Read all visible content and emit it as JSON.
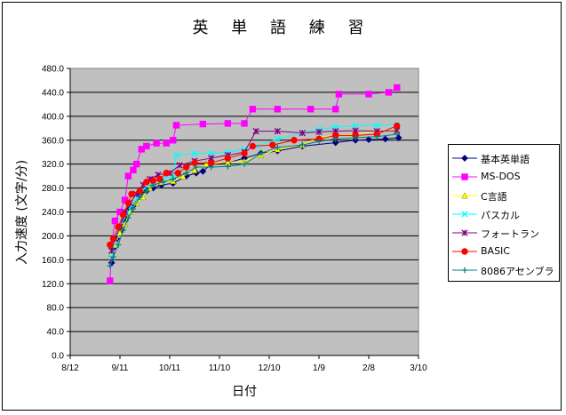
{
  "chart_data": {
    "type": "line",
    "title": "英 単 語 練 習",
    "xlabel": "日付",
    "ylabel": "入力速度 (文字/分)",
    "ylim": [
      0,
      480
    ],
    "yticks": [
      "0.0",
      "40.0",
      "80.0",
      "120.0",
      "160.0",
      "200.0",
      "240.0",
      "280.0",
      "320.0",
      "360.0",
      "400.0",
      "440.0",
      "480.0"
    ],
    "xticks": [
      "8/12",
      "9/11",
      "10/11",
      "11/10",
      "12/10",
      "1/9",
      "2/8",
      "3/10"
    ],
    "xlim_days": [
      0,
      210
    ],
    "grid": "horizontal",
    "plot_background": "#c0c0c0",
    "legend_position": "right",
    "series": [
      {
        "name": "基本英単語",
        "color": "#000080",
        "marker": "diamond",
        "points": [
          [
            25,
            155
          ],
          [
            26,
            180
          ],
          [
            28,
            195
          ],
          [
            31,
            210
          ],
          [
            33,
            225
          ],
          [
            36,
            245
          ],
          [
            38,
            250
          ],
          [
            42,
            270
          ],
          [
            46,
            275
          ],
          [
            50,
            280
          ],
          [
            55,
            285
          ],
          [
            62,
            288
          ],
          [
            70,
            300
          ],
          [
            76,
            305
          ],
          [
            80,
            308
          ],
          [
            85,
            320
          ],
          [
            95,
            322
          ],
          [
            105,
            330
          ],
          [
            115,
            338
          ],
          [
            125,
            342
          ],
          [
            140,
            350
          ],
          [
            160,
            356
          ],
          [
            172,
            360
          ],
          [
            180,
            361
          ],
          [
            190,
            362
          ],
          [
            198,
            364
          ]
        ]
      },
      {
        "name": "MS-DOS",
        "color": "#ff00ff",
        "marker": "square",
        "points": [
          [
            24,
            125
          ],
          [
            25,
            185
          ],
          [
            27,
            225
          ],
          [
            30,
            240
          ],
          [
            33,
            260
          ],
          [
            35,
            300
          ],
          [
            38,
            310
          ],
          [
            40,
            320
          ],
          [
            43,
            345
          ],
          [
            46,
            350
          ],
          [
            52,
            355
          ],
          [
            58,
            355
          ],
          [
            62,
            360
          ],
          [
            64,
            385
          ],
          [
            80,
            387
          ],
          [
            95,
            388
          ],
          [
            105,
            388
          ],
          [
            110,
            412
          ],
          [
            125,
            412
          ],
          [
            145,
            412
          ],
          [
            160,
            412
          ],
          [
            162,
            437
          ],
          [
            180,
            437
          ],
          [
            192,
            440
          ],
          [
            197,
            448
          ]
        ]
      },
      {
        "name": "C言語",
        "color": "#ffff00",
        "marker": "triangle",
        "points": [
          [
            25,
            170
          ],
          [
            27,
            185
          ],
          [
            30,
            205
          ],
          [
            33,
            220
          ],
          [
            36,
            240
          ],
          [
            40,
            255
          ],
          [
            44,
            265
          ],
          [
            48,
            280
          ],
          [
            55,
            290
          ],
          [
            62,
            292
          ],
          [
            68,
            300
          ],
          [
            75,
            310
          ],
          [
            82,
            320
          ],
          [
            95,
            323
          ],
          [
            105,
            325
          ],
          [
            115,
            335
          ],
          [
            125,
            345
          ],
          [
            140,
            352
          ],
          [
            150,
            365
          ],
          [
            160,
            368
          ],
          [
            172,
            370
          ],
          [
            185,
            375
          ],
          [
            197,
            378
          ]
        ]
      },
      {
        "name": "パスカル",
        "color": "#00ffff",
        "marker": "x",
        "points": [
          [
            25,
            165
          ],
          [
            27,
            190
          ],
          [
            30,
            215
          ],
          [
            34,
            235
          ],
          [
            37,
            250
          ],
          [
            41,
            265
          ],
          [
            45,
            280
          ],
          [
            50,
            290
          ],
          [
            56,
            295
          ],
          [
            62,
            300
          ],
          [
            64,
            335
          ],
          [
            75,
            338
          ],
          [
            85,
            338
          ],
          [
            95,
            340
          ],
          [
            105,
            345
          ],
          [
            112,
            350
          ],
          [
            125,
            362
          ],
          [
            140,
            372
          ],
          [
            150,
            378
          ],
          [
            160,
            382
          ],
          [
            172,
            384
          ],
          [
            185,
            385
          ],
          [
            197,
            386
          ]
        ]
      },
      {
        "name": "フォートラン",
        "color": "#800080",
        "marker": "star",
        "points": [
          [
            25,
            175
          ],
          [
            27,
            195
          ],
          [
            30,
            215
          ],
          [
            33,
            240
          ],
          [
            36,
            255
          ],
          [
            40,
            270
          ],
          [
            44,
            285
          ],
          [
            48,
            295
          ],
          [
            53,
            302
          ],
          [
            60,
            305
          ],
          [
            66,
            318
          ],
          [
            75,
            325
          ],
          [
            85,
            330
          ],
          [
            95,
            335
          ],
          [
            105,
            340
          ],
          [
            112,
            375
          ],
          [
            125,
            375
          ],
          [
            140,
            372
          ],
          [
            150,
            374
          ],
          [
            160,
            375
          ],
          [
            172,
            376
          ],
          [
            185,
            375
          ],
          [
            197,
            376
          ]
        ]
      },
      {
        "name": "BASIC",
        "color": "#ff0000",
        "marker": "circle",
        "points": [
          [
            24,
            185
          ],
          [
            26,
            195
          ],
          [
            29,
            215
          ],
          [
            32,
            235
          ],
          [
            35,
            255
          ],
          [
            37,
            270
          ],
          [
            42,
            275
          ],
          [
            46,
            290
          ],
          [
            50,
            292
          ],
          [
            54,
            295
          ],
          [
            58,
            305
          ],
          [
            65,
            305
          ],
          [
            70,
            315
          ],
          [
            75,
            322
          ],
          [
            85,
            322
          ],
          [
            95,
            330
          ],
          [
            105,
            338
          ],
          [
            110,
            350
          ],
          [
            122,
            352
          ],
          [
            135,
            360
          ],
          [
            150,
            362
          ],
          [
            160,
            368
          ],
          [
            172,
            368
          ],
          [
            185,
            370
          ],
          [
            197,
            384
          ]
        ]
      },
      {
        "name": "8086アセンブラ",
        "color": "#008080",
        "marker": "plus",
        "points": [
          [
            24,
            150
          ],
          [
            26,
            165
          ],
          [
            29,
            185
          ],
          [
            32,
            210
          ],
          [
            35,
            230
          ],
          [
            38,
            245
          ],
          [
            42,
            265
          ],
          [
            46,
            275
          ],
          [
            50,
            285
          ],
          [
            56,
            290
          ],
          [
            62,
            295
          ],
          [
            70,
            305
          ],
          [
            76,
            315
          ],
          [
            85,
            315
          ],
          [
            95,
            316
          ],
          [
            105,
            320
          ],
          [
            115,
            338
          ],
          [
            125,
            348
          ],
          [
            140,
            352
          ],
          [
            150,
            358
          ],
          [
            160,
            362
          ],
          [
            172,
            364
          ],
          [
            185,
            366
          ],
          [
            197,
            370
          ]
        ]
      }
    ]
  }
}
